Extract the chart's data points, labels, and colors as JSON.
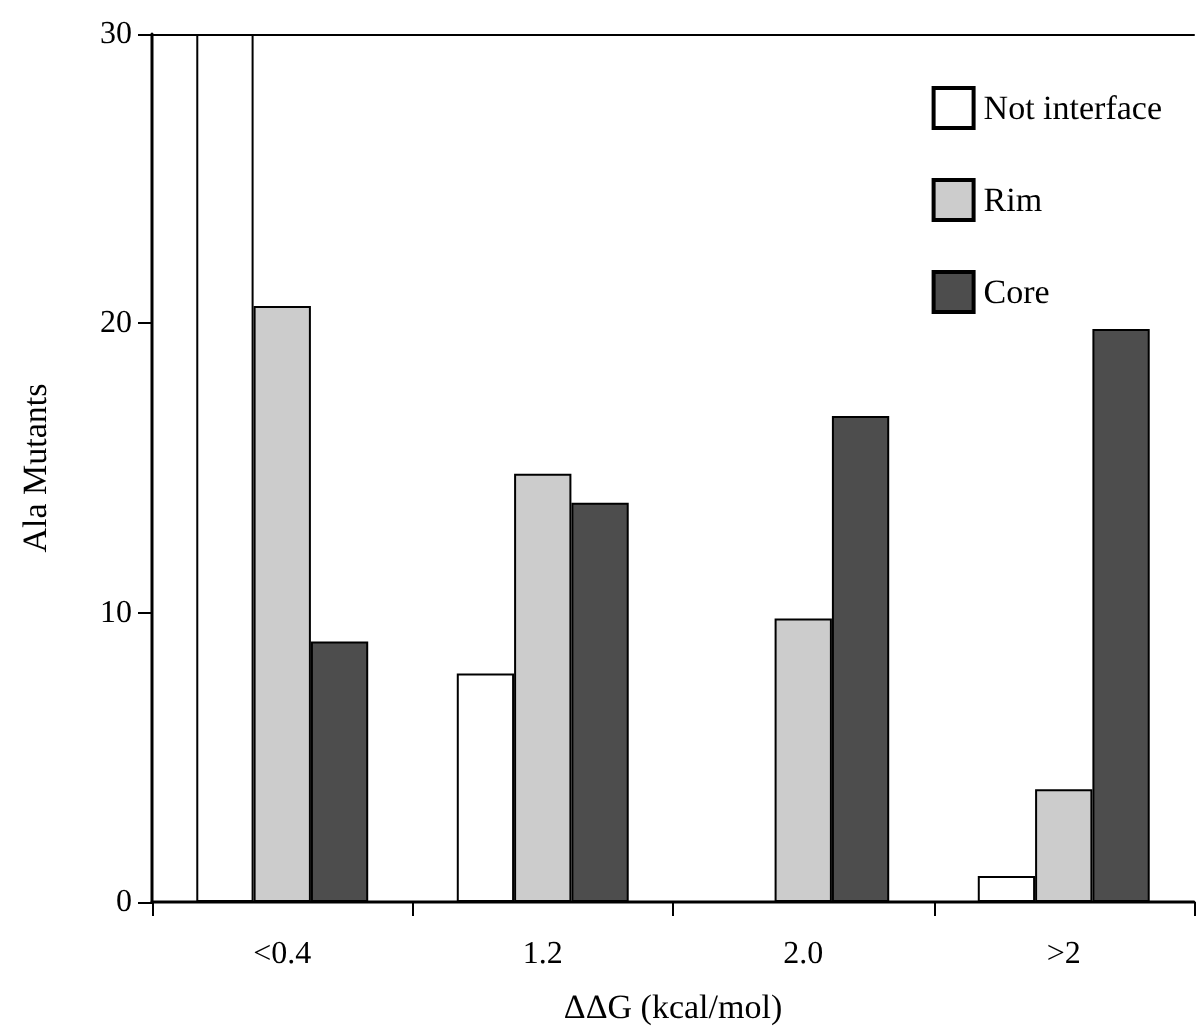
{
  "chart_data": {
    "type": "bar",
    "xlabel": "ΔΔG (kcal/mol)",
    "ylabel": "Ala Mutants",
    "categories": [
      "<0.4",
      "1.2",
      "2.0",
      ">2"
    ],
    "series": [
      {
        "name": "Not interface",
        "color": "#ffffff",
        "values": [
          30,
          7.9,
          0,
          0.9
        ]
      },
      {
        "name": "Rim",
        "color": "#cccccc",
        "values": [
          20.6,
          14.8,
          9.8,
          3.9
        ]
      },
      {
        "name": "Core",
        "color": "#4d4d4d",
        "values": [
          9,
          13.8,
          16.8,
          19.8
        ]
      }
    ],
    "ylim": [
      0,
      30
    ],
    "yticks": [
      0,
      10,
      20,
      30
    ],
    "grid": false,
    "legend": "top right"
  }
}
